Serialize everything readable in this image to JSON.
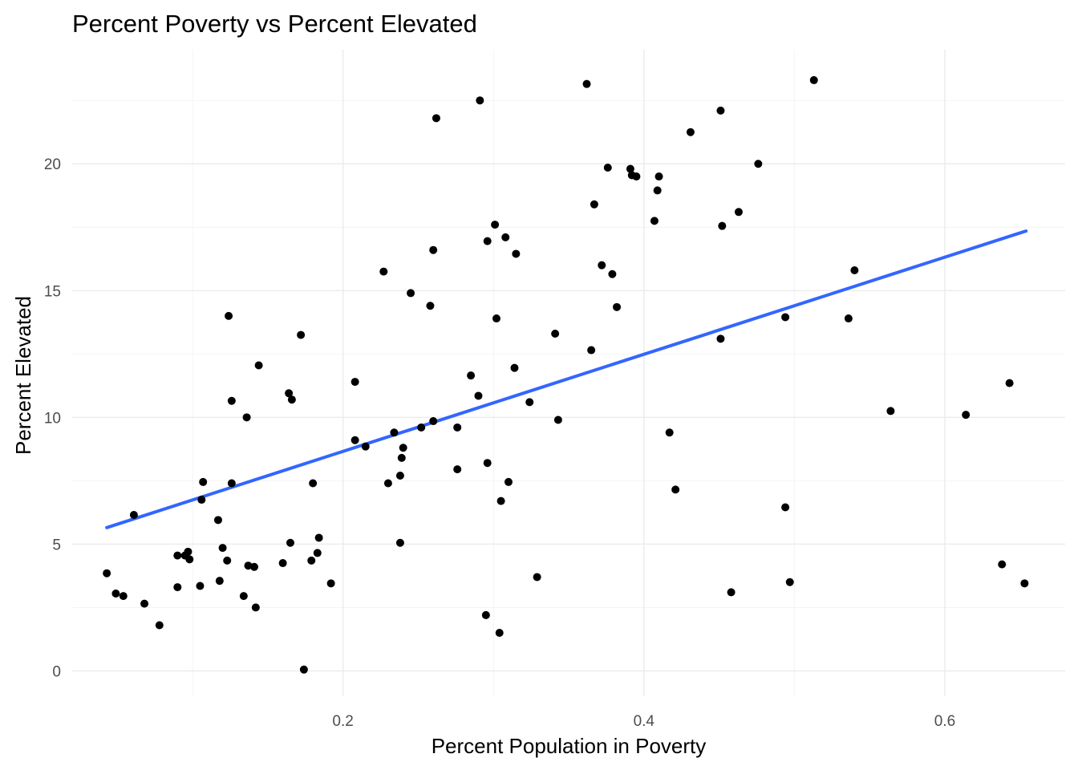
{
  "chart_data": {
    "type": "scatter",
    "title": "Percent Poverty vs Percent Elevated",
    "xlabel": "Percent Population in Poverty",
    "ylabel": "Percent Elevated",
    "xlim": [
      0.02,
      0.68
    ],
    "ylim": [
      -1.0,
      24.5
    ],
    "x_ticks": [
      0.2,
      0.4,
      0.6
    ],
    "x_minor_ticks": [
      0.1,
      0.3,
      0.5
    ],
    "x_tick_labels": [
      "0.2",
      "0.4",
      "0.6"
    ],
    "y_ticks": [
      0,
      5,
      10,
      15,
      20
    ],
    "y_minor_ticks": [
      2.5,
      7.5,
      12.5,
      17.5,
      22.5
    ],
    "y_tick_labels": [
      "0",
      "5",
      "10",
      "15",
      "20"
    ],
    "grid": true,
    "point_color": "#000000",
    "trend_color": "#3366ff",
    "trend_line": {
      "x": [
        0.043,
        0.654
      ],
      "y": [
        5.65,
        17.35
      ]
    },
    "points": [
      [
        0.043,
        3.85
      ],
      [
        0.049,
        3.05
      ],
      [
        0.054,
        2.95
      ],
      [
        0.061,
        6.15
      ],
      [
        0.068,
        2.65
      ],
      [
        0.078,
        1.8
      ],
      [
        0.09,
        4.55
      ],
      [
        0.09,
        3.3
      ],
      [
        0.095,
        4.55
      ],
      [
        0.097,
        4.7
      ],
      [
        0.098,
        4.4
      ],
      [
        0.105,
        3.35
      ],
      [
        0.106,
        6.75
      ],
      [
        0.107,
        7.45
      ],
      [
        0.117,
        5.95
      ],
      [
        0.118,
        3.55
      ],
      [
        0.12,
        4.85
      ],
      [
        0.123,
        4.35
      ],
      [
        0.124,
        14.0
      ],
      [
        0.126,
        7.4
      ],
      [
        0.126,
        10.65
      ],
      [
        0.134,
        2.95
      ],
      [
        0.136,
        10.0
      ],
      [
        0.137,
        4.15
      ],
      [
        0.141,
        4.1
      ],
      [
        0.142,
        2.5
      ],
      [
        0.144,
        12.05
      ],
      [
        0.16,
        4.25
      ],
      [
        0.164,
        10.95
      ],
      [
        0.165,
        5.05
      ],
      [
        0.166,
        10.7
      ],
      [
        0.172,
        13.25
      ],
      [
        0.174,
        0.05
      ],
      [
        0.179,
        4.35
      ],
      [
        0.18,
        7.4
      ],
      [
        0.183,
        4.65
      ],
      [
        0.184,
        5.25
      ],
      [
        0.192,
        3.45
      ],
      [
        0.208,
        11.4
      ],
      [
        0.208,
        9.1
      ],
      [
        0.215,
        8.85
      ],
      [
        0.227,
        15.75
      ],
      [
        0.23,
        7.4
      ],
      [
        0.234,
        9.4
      ],
      [
        0.238,
        7.7
      ],
      [
        0.238,
        5.05
      ],
      [
        0.239,
        8.4
      ],
      [
        0.24,
        8.8
      ],
      [
        0.245,
        14.9
      ],
      [
        0.252,
        9.6
      ],
      [
        0.258,
        14.4
      ],
      [
        0.26,
        16.6
      ],
      [
        0.26,
        9.85
      ],
      [
        0.262,
        21.8
      ],
      [
        0.276,
        9.6
      ],
      [
        0.276,
        7.95
      ],
      [
        0.285,
        11.65
      ],
      [
        0.29,
        10.85
      ],
      [
        0.291,
        22.5
      ],
      [
        0.295,
        2.2
      ],
      [
        0.296,
        8.2
      ],
      [
        0.296,
        16.95
      ],
      [
        0.301,
        17.6
      ],
      [
        0.302,
        13.9
      ],
      [
        0.304,
        1.5
      ],
      [
        0.305,
        6.7
      ],
      [
        0.308,
        17.1
      ],
      [
        0.31,
        7.45
      ],
      [
        0.314,
        11.95
      ],
      [
        0.315,
        16.45
      ],
      [
        0.324,
        10.6
      ],
      [
        0.329,
        3.7
      ],
      [
        0.341,
        13.3
      ],
      [
        0.343,
        9.9
      ],
      [
        0.362,
        23.15
      ],
      [
        0.365,
        12.65
      ],
      [
        0.367,
        18.4
      ],
      [
        0.372,
        16.0
      ],
      [
        0.376,
        19.85
      ],
      [
        0.379,
        15.65
      ],
      [
        0.382,
        14.35
      ],
      [
        0.391,
        19.8
      ],
      [
        0.392,
        19.55
      ],
      [
        0.395,
        19.5
      ],
      [
        0.407,
        17.75
      ],
      [
        0.409,
        18.95
      ],
      [
        0.41,
        19.5
      ],
      [
        0.417,
        9.4
      ],
      [
        0.421,
        7.15
      ],
      [
        0.431,
        21.25
      ],
      [
        0.451,
        13.1
      ],
      [
        0.451,
        22.1
      ],
      [
        0.452,
        17.55
      ],
      [
        0.458,
        3.1
      ],
      [
        0.463,
        18.1
      ],
      [
        0.476,
        20.0
      ],
      [
        0.494,
        13.95
      ],
      [
        0.494,
        6.45
      ],
      [
        0.497,
        3.5
      ],
      [
        0.513,
        23.3
      ],
      [
        0.536,
        13.9
      ],
      [
        0.54,
        15.8
      ],
      [
        0.564,
        10.25
      ],
      [
        0.614,
        10.1
      ],
      [
        0.638,
        4.2
      ],
      [
        0.643,
        11.35
      ],
      [
        0.653,
        3.45
      ]
    ]
  }
}
